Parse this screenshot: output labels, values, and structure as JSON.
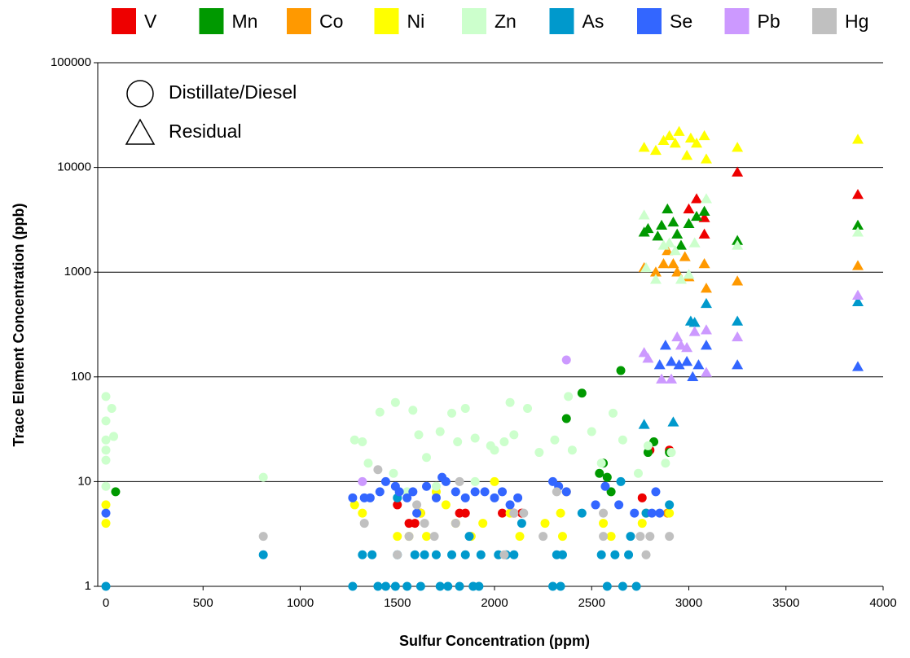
{
  "chart_data": {
    "type": "scatter",
    "x_label": "Sulfur Concentration (ppm)",
    "y_label": "Trace Element Concentration (ppb)",
    "xlim": [
      0,
      4000
    ],
    "xticks": [
      0,
      500,
      1000,
      1500,
      2000,
      2500,
      3000,
      3500,
      4000
    ],
    "ylim": [
      1,
      100000
    ],
    "yticks": [
      1,
      10,
      100,
      1000,
      10000,
      100000
    ],
    "y_log": true,
    "grid": true,
    "legend_position": "top",
    "marker_legend": [
      {
        "label": "Distillate/Diesel",
        "marker": "circle"
      },
      {
        "label": "Residual",
        "marker": "triangle"
      }
    ],
    "series": [
      {
        "name": "V",
        "color": "#ee0000",
        "groups": [
          {
            "marker": "circle",
            "x": [
              1500,
              1560,
              1590,
              1620,
              1820,
              1850,
              2040,
              2100,
              2140,
              2760,
              2800,
              2900
            ],
            "values": [
              6,
              4,
              4,
              5,
              5,
              5,
              5,
              5,
              5,
              7,
              20,
              20
            ]
          },
          {
            "marker": "triangle",
            "x": [
              3040,
              3000,
              3080,
              3080,
              3250,
              3870
            ],
            "values": [
              5000,
              4000,
              3300,
              2300,
              9000,
              5500
            ]
          }
        ]
      },
      {
        "name": "Mn",
        "color": "#009900",
        "groups": [
          {
            "marker": "circle",
            "x": [
              50,
              2450,
              2370,
              2650,
              2580,
              2600,
              2540,
              2560,
              2790,
              2820,
              2900
            ],
            "values": [
              8,
              70,
              40,
              115,
              11,
              8,
              12,
              15,
              19,
              24,
              19
            ]
          },
          {
            "marker": "triangle",
            "x": [
              2770,
              2790,
              2840,
              2860,
              2890,
              2920,
              2940,
              3000,
              3040,
              3080,
              3250,
              3870,
              2960
            ],
            "values": [
              2400,
              2600,
              2200,
              2800,
              4000,
              3000,
              2300,
              2900,
              3400,
              3800,
              2000,
              2800,
              1800
            ]
          }
        ]
      },
      {
        "name": "Co",
        "color": "#ff9900",
        "groups": [
          {
            "marker": "circle",
            "x": [
              2370,
              2780,
              2890
            ],
            "values": [
              8,
              5,
              5
            ]
          },
          {
            "marker": "triangle",
            "x": [
              2770,
              2830,
              2870,
              2890,
              2920,
              2940,
              2980,
              3000,
              3080,
              3090,
              3250,
              3870
            ],
            "values": [
              1100,
              1000,
              1200,
              1600,
              1200,
              1000,
              1400,
              900,
              1200,
              700,
              820,
              1150
            ]
          }
        ]
      },
      {
        "name": "Ni",
        "color": "#ffff00",
        "groups": [
          {
            "marker": "circle",
            "x": [
              0,
              0,
              1280,
              1320,
              1500,
              1560,
              1620,
              1650,
              1700,
              1750,
              1800,
              1880,
              1940,
              2000,
              2080,
              2130,
              2260,
              2340,
              2350,
              2560,
              2600,
              2760,
              2900
            ],
            "values": [
              6,
              4,
              6,
              5,
              3,
              3,
              5,
              3,
              8,
              6,
              4,
              3,
              4,
              10,
              5,
              3,
              4,
              5,
              3,
              4,
              3,
              4,
              5
            ]
          },
          {
            "marker": "triangle",
            "x": [
              2770,
              2830,
              2870,
              2900,
              2930,
              2950,
              2990,
              3010,
              3040,
              3080,
              3090,
              3250,
              3870
            ],
            "values": [
              15500,
              14500,
              18000,
              20000,
              17000,
              22000,
              13000,
              19000,
              17000,
              20000,
              12000,
              15500,
              18500
            ]
          }
        ]
      },
      {
        "name": "Zn",
        "color": "#ccffcc",
        "groups": [
          {
            "marker": "circle",
            "x": [
              0,
              0,
              0,
              0,
              0,
              0,
              30,
              40,
              810,
              1280,
              1320,
              1350,
              1410,
              1480,
              1490,
              1580,
              1610,
              1650,
              1720,
              1780,
              1810,
              1850,
              1900,
              1980,
              2000,
              2050,
              2080,
              2100,
              2170,
              2230,
              2310,
              2380,
              2400,
              2500,
              2550,
              2610,
              2660,
              2740,
              2790,
              2880,
              2910,
              1550,
              1700,
              1900
            ],
            "values": [
              65,
              38,
              25,
              20,
              16,
              9,
              50,
              27,
              11,
              25,
              24,
              15,
              46,
              12,
              57,
              48,
              28,
              17,
              30,
              45,
              24,
              50,
              26,
              22,
              20,
              24,
              57,
              28,
              50,
              19,
              25,
              65,
              20,
              30,
              15,
              45,
              25,
              12,
              22,
              15,
              19,
              8,
              9,
              10
            ]
          },
          {
            "marker": "triangle",
            "x": [
              2770,
              2780,
              2830,
              2870,
              2900,
              2930,
              2960,
              3000,
              3030,
              3090,
              3250,
              3870
            ],
            "values": [
              3500,
              1100,
              850,
              1800,
              1900,
              1600,
              850,
              950,
              1900,
              5000,
              1800,
              2400
            ]
          }
        ]
      },
      {
        "name": "As",
        "color": "#0099cc",
        "groups": [
          {
            "marker": "circle",
            "x": [
              0,
              810,
              1270,
              1320,
              1370,
              1400,
              1440,
              1490,
              1500,
              1500,
              1550,
              1590,
              1620,
              1640,
              1700,
              1720,
              1760,
              1780,
              1820,
              1850,
              1870,
              1890,
              1920,
              1930,
              2020,
              2060,
              2100,
              2140,
              2300,
              2320,
              2340,
              2350,
              2450,
              2550,
              2580,
              2620,
              2660,
              2690,
              2730,
              2780,
              2900,
              2650,
              2700
            ],
            "values": [
              1,
              2,
              1,
              2,
              2,
              1,
              1,
              1,
              2,
              7,
              1,
              2,
              1,
              2,
              2,
              1,
              1,
              2,
              1,
              2,
              3,
              1,
              1,
              2,
              2,
              2,
              2,
              4,
              1,
              2,
              1,
              2,
              5,
              2,
              1,
              2,
              1,
              2,
              1,
              5,
              6,
              10,
              3
            ]
          },
          {
            "marker": "triangle",
            "x": [
              2770,
              2920,
              3010,
              3030,
              3090,
              3250,
              3870
            ],
            "values": [
              35,
              37,
              340,
              330,
              500,
              340,
              520
            ]
          }
        ]
      },
      {
        "name": "Se",
        "color": "#3366ff",
        "groups": [
          {
            "marker": "circle",
            "x": [
              0,
              1270,
              1330,
              1360,
              1410,
              1440,
              1490,
              1510,
              1550,
              1580,
              1600,
              1650,
              1700,
              1730,
              1750,
              1800,
              1850,
              1900,
              1950,
              2000,
              2040,
              2080,
              2120,
              2300,
              2330,
              2370,
              2520,
              2570,
              2640,
              2720,
              2810,
              2830,
              2850
            ],
            "values": [
              5,
              7,
              7,
              7,
              8,
              10,
              9,
              8,
              7,
              8,
              5,
              9,
              7,
              11,
              10,
              8,
              7,
              8,
              8,
              7,
              8,
              6,
              7,
              10,
              9,
              8,
              6,
              9,
              6,
              5,
              5,
              8,
              5
            ]
          },
          {
            "marker": "triangle",
            "x": [
              2850,
              2880,
              2910,
              2950,
              2990,
              3020,
              3050,
              3090,
              3250,
              3870
            ],
            "values": [
              130,
              200,
              140,
              130,
              140,
              100,
              130,
              200,
              130,
              125
            ]
          }
        ]
      },
      {
        "name": "Pb",
        "color": "#cc99ff",
        "groups": [
          {
            "marker": "circle",
            "x": [
              1320,
              2370
            ],
            "values": [
              10,
              145
            ]
          },
          {
            "marker": "triangle",
            "x": [
              2770,
              2790,
              2860,
              2910,
              2940,
              2960,
              2990,
              3030,
              3090,
              3090,
              3250,
              3870
            ],
            "values": [
              170,
              150,
              95,
              95,
              240,
              200,
              190,
              270,
              280,
              110,
              240,
              600
            ]
          }
        ]
      },
      {
        "name": "Hg",
        "color": "#c0c0c0",
        "groups": [
          {
            "marker": "circle",
            "x": [
              810,
              1330,
              1400,
              1500,
              1560,
              1600,
              1640,
              1690,
              1800,
              1820,
              2050,
              2100,
              2150,
              2250,
              2320,
              2560,
              2560,
              2750,
              2780,
              2800,
              2900
            ],
            "values": [
              3,
              4,
              13,
              2,
              3,
              6,
              4,
              3,
              4,
              10,
              2,
              5,
              5,
              3,
              8,
              3,
              5,
              3,
              2,
              3,
              3
            ]
          }
        ]
      }
    ]
  }
}
